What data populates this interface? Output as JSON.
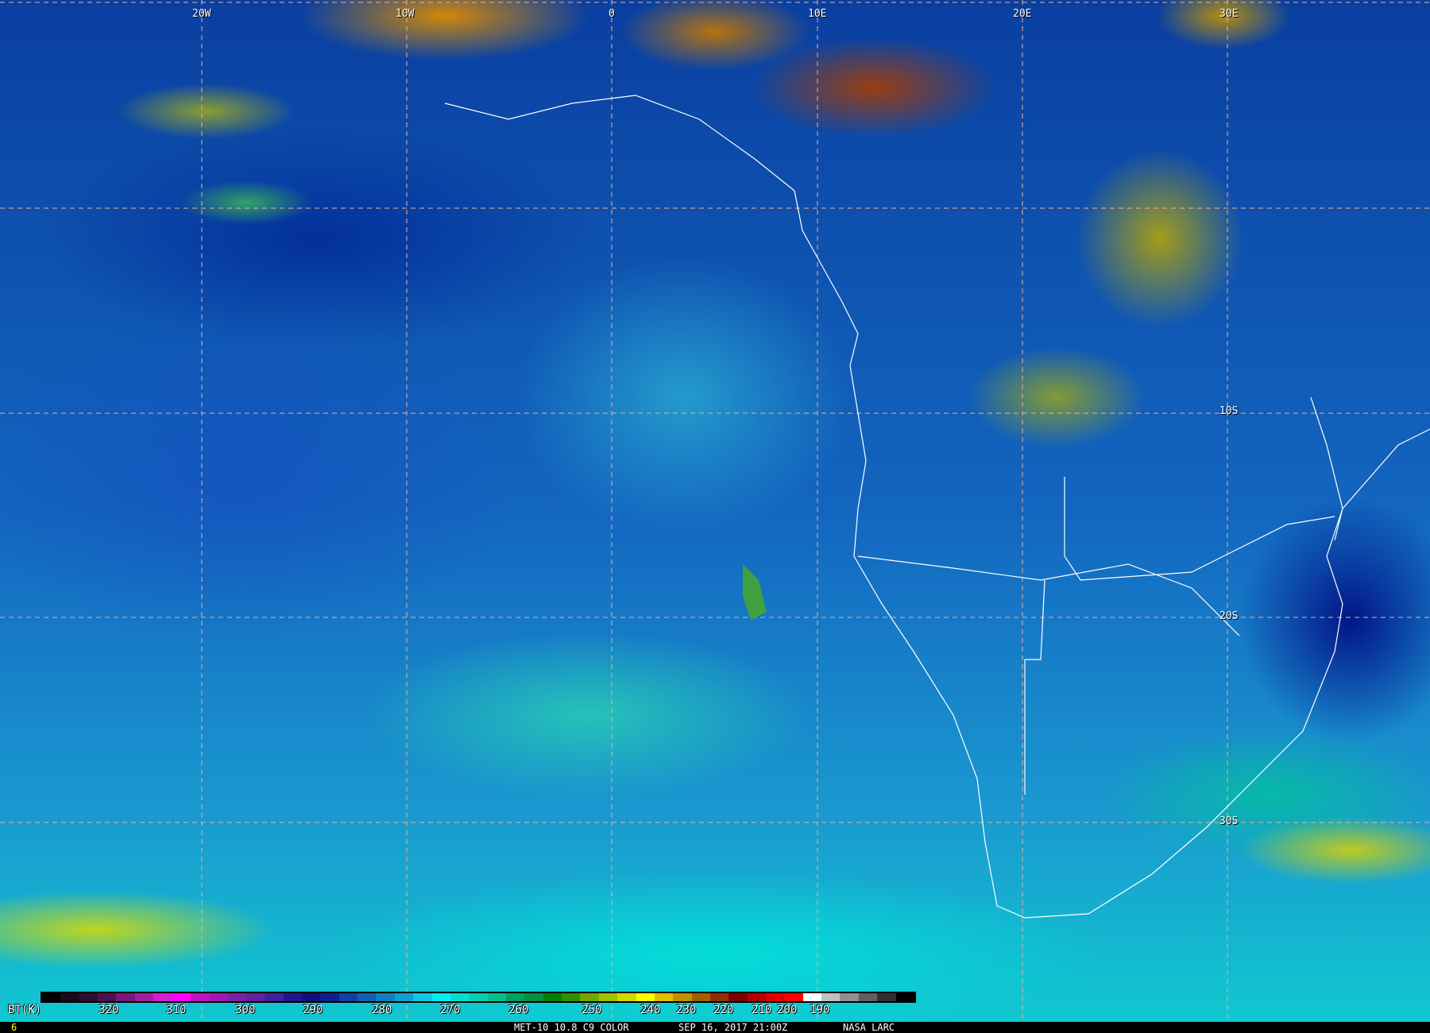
{
  "lon_labels": [
    "20W",
    "10W",
    "0",
    "10E",
    "20E",
    "30E"
  ],
  "lat_labels": [
    "10S",
    "20S",
    "30S"
  ],
  "colorbar": {
    "unit_label": "BT(K)",
    "ticks": [
      "320",
      "310",
      "300",
      "290",
      "280",
      "270",
      "260",
      "250",
      "240",
      "230",
      "220",
      "210",
      "200",
      "190"
    ],
    "colors": [
      "#000000",
      "#1a0a1a",
      "#301030",
      "#501050",
      "#781878",
      "#a020a0",
      "#d020d0",
      "#ff00ff",
      "#c010c0",
      "#a018b0",
      "#8020a0",
      "#6020a0",
      "#40209a",
      "#201890",
      "#101080",
      "#102090",
      "#1040a0",
      "#1060b0",
      "#1080c0",
      "#10a0d0",
      "#10c8e0",
      "#00f0f0",
      "#00e0d0",
      "#00d0b0",
      "#00c090",
      "#00a060",
      "#009040",
      "#008000",
      "#309000",
      "#70a800",
      "#a0c000",
      "#d0d800",
      "#ffff00",
      "#e0c000",
      "#c09000",
      "#a06000",
      "#903000",
      "#800000",
      "#b00000",
      "#e00000",
      "#ff0000",
      "#ffffff",
      "#c0c0c0",
      "#909090",
      "#606060",
      "#303030",
      "#000000"
    ]
  },
  "footer": {
    "frame": "6",
    "product": "MET-10 10.8 C9 COLOR",
    "datetime": "SEP 16, 2017 21:00Z",
    "credit": "NASA LARC"
  }
}
